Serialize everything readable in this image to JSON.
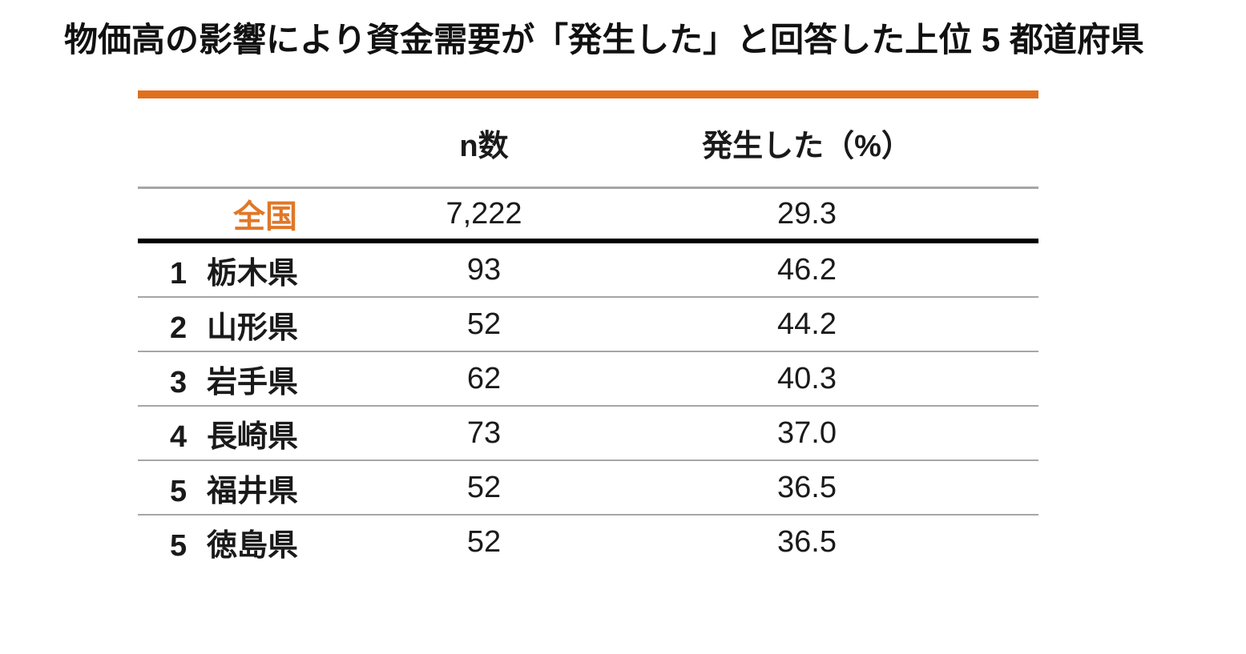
{
  "title": "物価高の影響により資金需要が「発生した」と回答した上位 5 都道府県",
  "colors": {
    "accent_orange": "#E0701E",
    "national_text_orange": "#E07828",
    "separator_gray": "#A6A6A6",
    "divider_black": "#000000",
    "text_black": "#1A1A1A"
  },
  "table": {
    "header": {
      "n_label": "n数",
      "pct_label": "発生した（%）"
    },
    "national": {
      "label": "全国",
      "n": "7,222",
      "pct": "29.3"
    },
    "rows": [
      {
        "rank": "1",
        "prefecture": "栃木県",
        "n": "93",
        "pct": "46.2"
      },
      {
        "rank": "2",
        "prefecture": "山形県",
        "n": "52",
        "pct": "44.2"
      },
      {
        "rank": "3",
        "prefecture": "岩手県",
        "n": "62",
        "pct": "40.3"
      },
      {
        "rank": "4",
        "prefecture": "長崎県",
        "n": "73",
        "pct": "37.0"
      },
      {
        "rank": "5",
        "prefecture": "福井県",
        "n": "52",
        "pct": "36.5"
      },
      {
        "rank": "5",
        "prefecture": "徳島県",
        "n": "52",
        "pct": "36.5"
      }
    ]
  },
  "chart_data": {
    "type": "table",
    "title": "物価高の影響により資金需要が「発生した」と回答した上位 5 都道府県",
    "columns": [
      "",
      "n数",
      "発生した（%）"
    ],
    "rows": [
      [
        "全国",
        7222,
        29.3
      ],
      [
        "1 栃木県",
        93,
        46.2
      ],
      [
        "2 山形県",
        52,
        44.2
      ],
      [
        "3 岩手県",
        62,
        40.3
      ],
      [
        "4 長崎県",
        73,
        37.0
      ],
      [
        "5 福井県",
        52,
        36.5
      ],
      [
        "5 徳島県",
        52,
        36.5
      ]
    ],
    "notes": "全国 row separated from ranked rows by thick black rule; orange bar above header"
  }
}
